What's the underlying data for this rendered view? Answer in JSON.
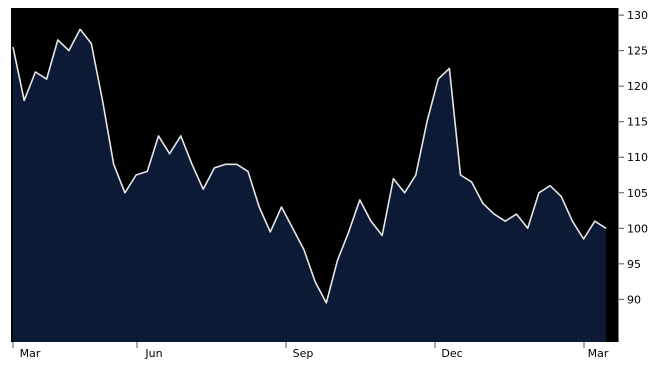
{
  "chart_data": {
    "type": "area",
    "title": "",
    "xlabel": "",
    "ylabel": "",
    "ylim": [
      84,
      131
    ],
    "y_ticks": [
      90,
      95,
      100,
      105,
      110,
      115,
      120,
      125,
      130
    ],
    "x_tick_labels": [
      "Mar",
      "Jun",
      "Sep",
      "Dec",
      "Mar"
    ],
    "grid": false,
    "legend": "none",
    "colors": {
      "background": "#000000",
      "area_fill": "#0d1a36",
      "line": "#e6e6e6",
      "frame": "#ffffff",
      "tick_text": "#000000"
    },
    "x": [
      "Mar 1",
      "Mar 8",
      "Mar 15",
      "Mar 22",
      "Mar 29",
      "Apr 5",
      "Apr 12",
      "Apr 19",
      "Apr 26",
      "May 3",
      "May 10",
      "May 17",
      "May 24",
      "May 31",
      "Jun 7",
      "Jun 14",
      "Jun 21",
      "Jun 28",
      "Jul 5",
      "Jul 12",
      "Jul 19",
      "Jul 26",
      "Aug 2",
      "Aug 9",
      "Aug 16",
      "Aug 23",
      "Aug 30",
      "Sep 6",
      "Sep 13",
      "Sep 20",
      "Sep 27",
      "Oct 4",
      "Oct 11",
      "Oct 18",
      "Oct 25",
      "Nov 1",
      "Nov 8",
      "Nov 15",
      "Nov 22",
      "Nov 29",
      "Dec 6",
      "Dec 13",
      "Dec 20",
      "Dec 27",
      "Jan 3",
      "Jan 10",
      "Jan 17",
      "Jan 24",
      "Jan 31",
      "Feb 7",
      "Feb 14",
      "Feb 21",
      "Feb 28",
      "Mar 7"
    ],
    "values": [
      125.5,
      118,
      122,
      121,
      126.5,
      125,
      128,
      126,
      118,
      109,
      105,
      107.5,
      108,
      113,
      110.5,
      113,
      109,
      105.5,
      108.5,
      109,
      109,
      108,
      103,
      99.5,
      103,
      100,
      97,
      92.5,
      89.5,
      95.5,
      99.5,
      104,
      101,
      99,
      107,
      105,
      107.5,
      115,
      121,
      122.5,
      107.5,
      106.5,
      103.5,
      102,
      101,
      102,
      100,
      105,
      106,
      104.5,
      101,
      98.5,
      101,
      100
    ]
  }
}
